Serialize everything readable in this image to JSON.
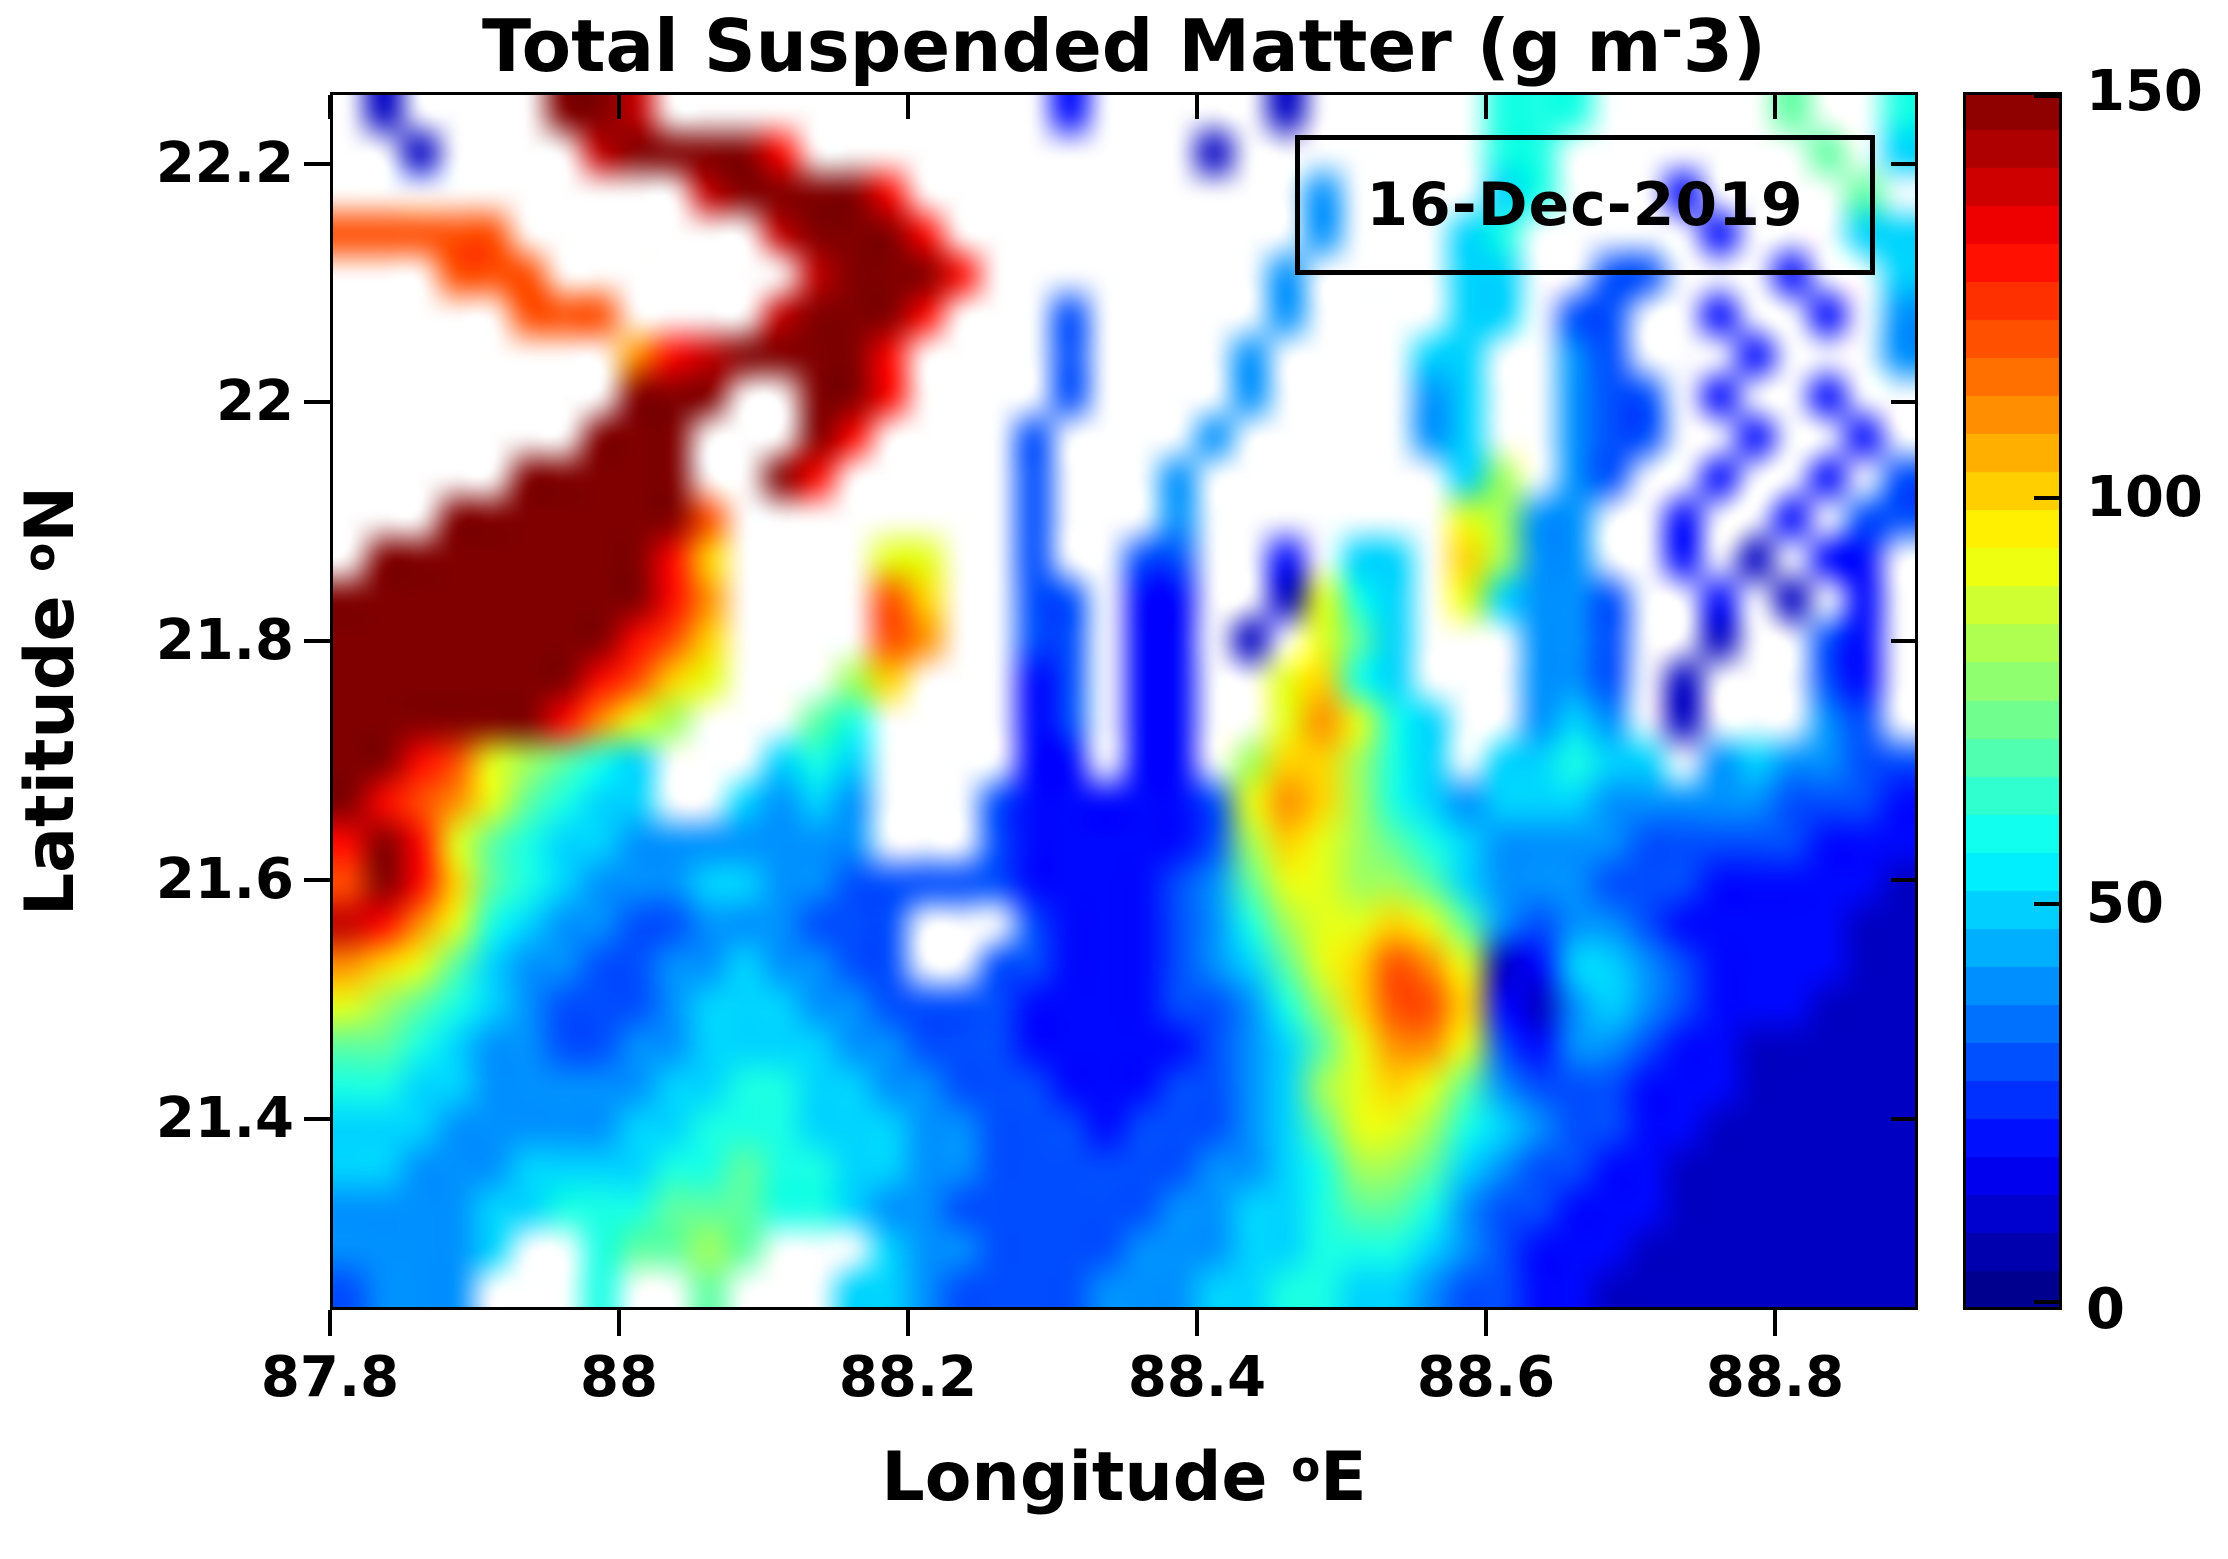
{
  "chart_data": {
    "type": "heatmap",
    "title": {
      "prefix": "Total Suspended Matter (g m",
      "sup": "-",
      "suffix": "3)"
    },
    "xlabel": {
      "prefix": "Longitude ",
      "sup": "o",
      "suffix": "E"
    },
    "ylabel": {
      "prefix": "Latitude ",
      "sup": "o",
      "suffix": "N"
    },
    "annotation": "16-Dec-2019",
    "xlim": [
      87.8,
      88.899
    ],
    "ylim": [
      21.24,
      22.26
    ],
    "x_ticks": {
      "values": [
        87.8,
        88,
        88.2,
        88.4,
        88.6,
        88.8
      ],
      "labels": [
        "87.8",
        "88",
        "88.2",
        "88.4",
        "88.6",
        "88.8"
      ]
    },
    "y_ticks": {
      "values": [
        22.2,
        22,
        21.8,
        21.6,
        21.4
      ],
      "labels": [
        "22.2",
        "22",
        "21.8",
        "21.6",
        "21.4"
      ]
    },
    "colorbar": {
      "min": 0,
      "max": 150,
      "ticks": [
        0,
        50,
        100,
        150
      ],
      "labels": [
        "0",
        "50",
        "100",
        "150"
      ],
      "colormap": "jet",
      "steps": 32
    },
    "units": "g m^-3",
    "grid": {
      "width": 44,
      "height": 30,
      "value_scale": "hex char c -> TSM = parseInt(c,16)*10 g/m3 (0..F = 0..150); '.' = no data / land (white)",
      "rows": [
        ".1....FFE...........2.....1.....666.....7..6",
        "..1....EFFFFD...........1.......66.......7.5",
        "..........EFFFFD...........4....56...2....7.",
        "CCCCC.......EFFFD..........4...56.....2...55",
        "...CCC.......EFFFD........4....55..33...2..5",
        ".....CCC....EFFFD...3.....4....55.33..2..2.4",
        "........BDEFFFFD....3....4....55..43...2...4",
        "........FFF..FFD....3....4....45..433.2..2..",
        ".......FFF...FD....3....4.....45..433..2..2.",
        ".....FFFFF..FD.....3...4.......58.43..2..2.3",
        "...FFFFFFFC........3...4.......9844..2..2.33",
        ".FFFFFFFFDA....99..3..33..2.55.A844..2.1.22.",
        "FFFFFFFFFDB....CA..33.22..1965.95443..2.1.2.",
        "FFFFFFFFDCA....CB..33.22.1.975...443..1..32.",
        "FFFFFFFDCA9...8A...23.22..9A65...443.1...32.",
        "FFFFFFDB98...76....23.22..9B965..454.1...43.",
        "FFDC98765...565....22.22.8AA865.55655.454433",
        "FDCB97655..5454...32222239BA8654555444443332",
        "DFD976554444444...32222238A98765444433333222",
        "CFDA7654445544333332222347998875444333222221",
        "EDB9654433444333...3222346899A97434432222211",
        "BA97544334454433..3322234579ACB9125543222211",
        "9876543334555443333222233468ACCA214543222111",
        "77654433445555443332222234579BB9324432211111",
        "66554444455665544333222334589A97433322211111",
        "55544444556665554433323334579986543322111111",
        "55444555566766554433333344568875433221111111",
        "44445566677766544333333445567764332221111111",
        "44445..67787...54433334445566654322211111111",
        "3444...6..7...554333344455665543322111111111"
      ]
    },
    "legend": "none",
    "grid_lines": "off",
    "colors": {
      "background": "#ffffff",
      "text": "#000000",
      "axis": "#000000",
      "colorbar_top": "#800000",
      "colorbar_bottom": "#000090"
    }
  }
}
